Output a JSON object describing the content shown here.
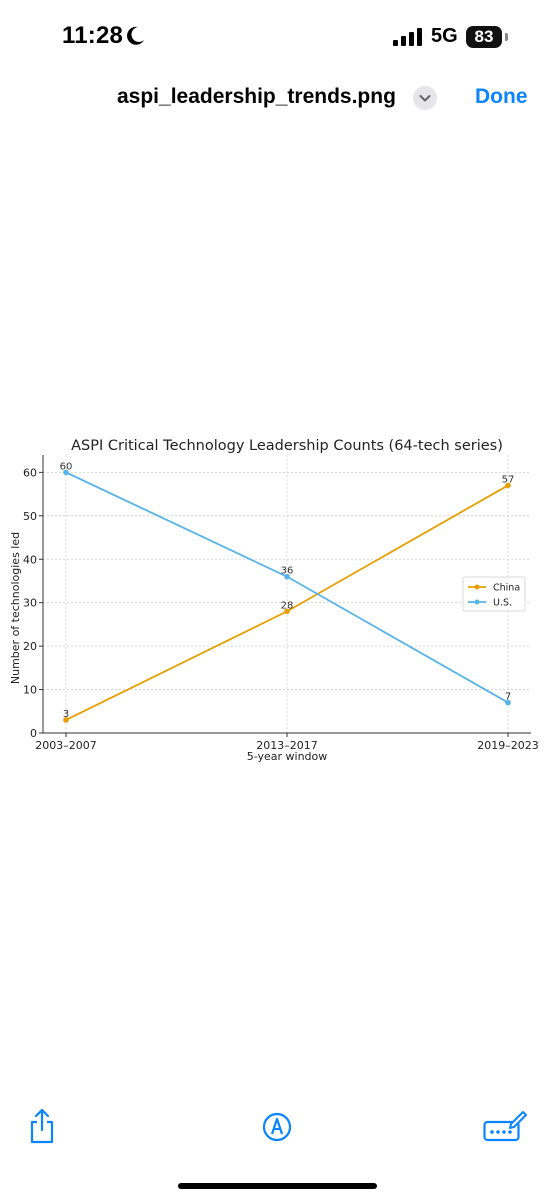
{
  "status": {
    "time": "11:28",
    "network": "5G",
    "battery": "83"
  },
  "nav": {
    "title": "aspi_leadership_trends.png",
    "done_label": "Done"
  },
  "chart_data": {
    "type": "line",
    "title": "ASPI Critical Technology Leadership Counts (64-tech series)",
    "xlabel": "5-year window",
    "ylabel": "Number of technologies led",
    "categories": [
      "2003–2007",
      "2013–2017",
      "2019–2023"
    ],
    "yticks": [
      0,
      10,
      20,
      30,
      40,
      50,
      60
    ],
    "ylim": [
      0,
      64
    ],
    "grid": true,
    "legend": "right",
    "series": [
      {
        "name": "China",
        "values": [
          3,
          28,
          57
        ],
        "color": "#e69f00"
      },
      {
        "name": "U.S.",
        "values": [
          60,
          36,
          7
        ],
        "color": "#56b4e9"
      }
    ]
  },
  "toolbar": {
    "share": "share-icon",
    "markup": "markup-icon",
    "keyboard": "keyboard-pen-icon"
  }
}
